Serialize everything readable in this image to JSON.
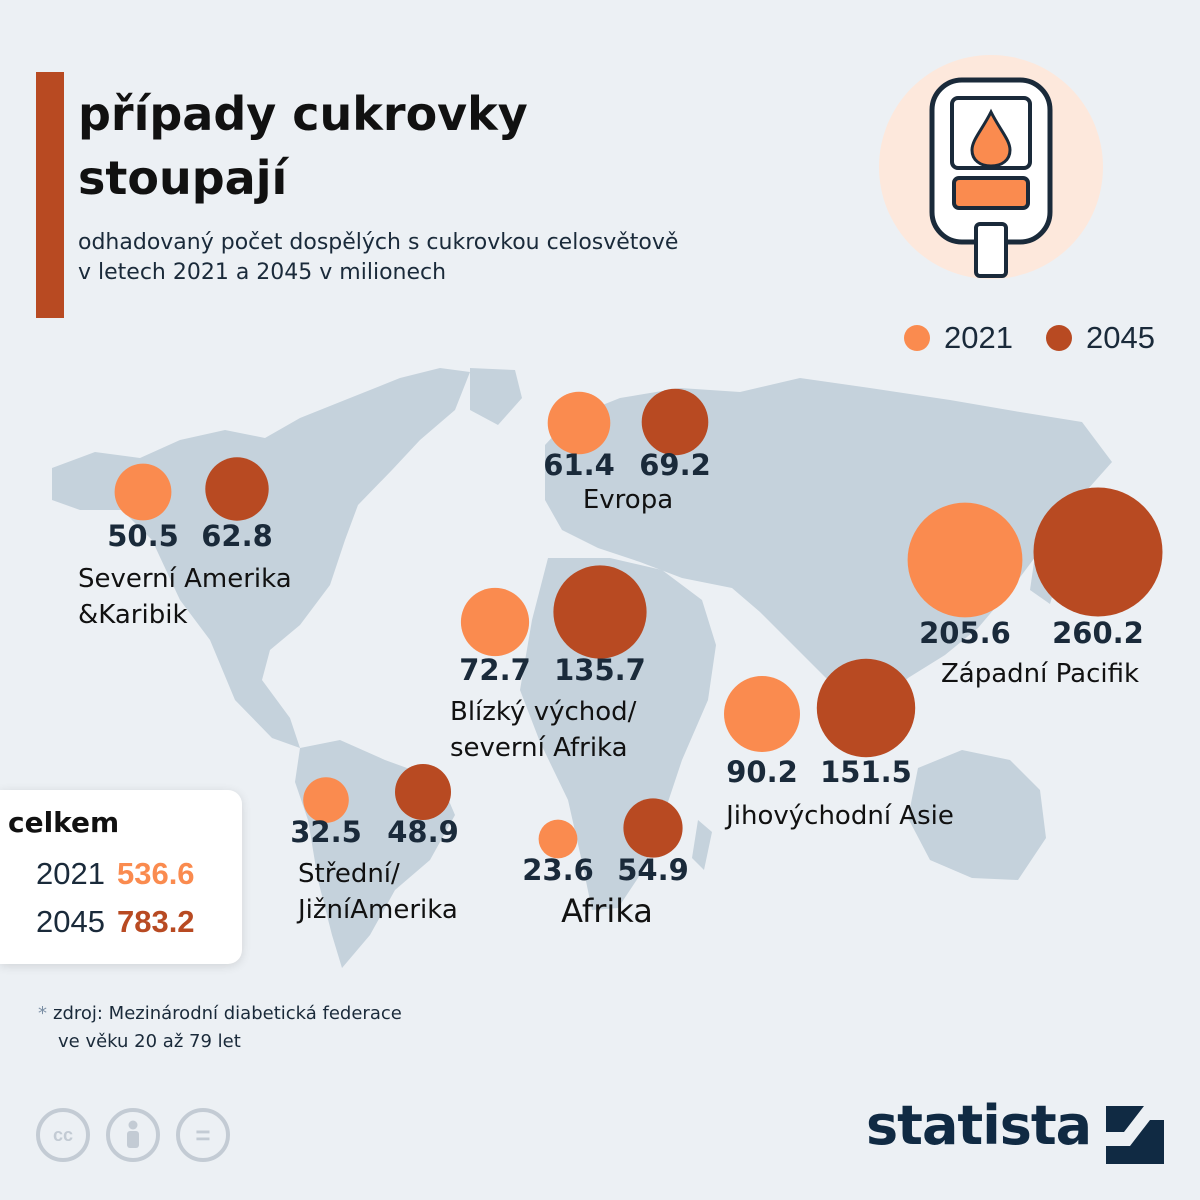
{
  "title": "případy cukrovky stoupají",
  "subtitle": "odhadovaný počet dospělých s cukrovkou celosvětově v letech 2021 a 2045 v milionech",
  "icons": [
    "glucose-meter-icon",
    "cc-icon",
    "attribution-icon",
    "noderivs-icon",
    "statista-logo-icon"
  ],
  "colors": {
    "y2021": "#fa8b4f",
    "y2045": "#b84a22",
    "map": "#c5d2dc",
    "background": "#ecf0f4",
    "accent": "#b84a22",
    "text": "#1a2a3a"
  },
  "legend": [
    {
      "label": "2021",
      "color": "#fa8b4f"
    },
    {
      "label": "2045",
      "color": "#b84a22"
    }
  ],
  "chart_data": {
    "type": "bubble",
    "title": "případy cukrovky stoupají",
    "subtitle": "odhadovaný počet dospělých s cukrovkou celosvětově v letech 2021 a 2045 v milionech",
    "series_names": [
      "2021",
      "2045"
    ],
    "regions": [
      {
        "name": "Severní Amerika\n&Karibik",
        "v2021": 50.5,
        "v2045": 62.8
      },
      {
        "name": "Evropa",
        "v2021": 61.4,
        "v2045": 69.2
      },
      {
        "name": "Blízký východ/\nseverní Afrika",
        "v2021": 72.7,
        "v2045": 135.7
      },
      {
        "name": "Západní Pacifik",
        "v2021": 205.6,
        "v2045": 260.2
      },
      {
        "name": "Jihovýchodní Asie",
        "v2021": 90.2,
        "v2045": 151.5
      },
      {
        "name": "Střední/\nJižníAmerika",
        "v2021": 32.5,
        "v2045": 48.9
      },
      {
        "name": "Afrika",
        "v2021": 23.6,
        "v2045": 54.9
      }
    ],
    "totals": {
      "label": "celkem",
      "rows": [
        {
          "year": "2021",
          "value": "536.6"
        },
        {
          "year": "2045",
          "value": "783.2"
        }
      ]
    }
  },
  "source": {
    "line1": "zdroj: Mezinárodní diabetická federace",
    "line2": "ve věku 20 až 79 let"
  },
  "cc_labels": {
    "cc": "cc",
    "equals": "="
  },
  "brand": "statista"
}
